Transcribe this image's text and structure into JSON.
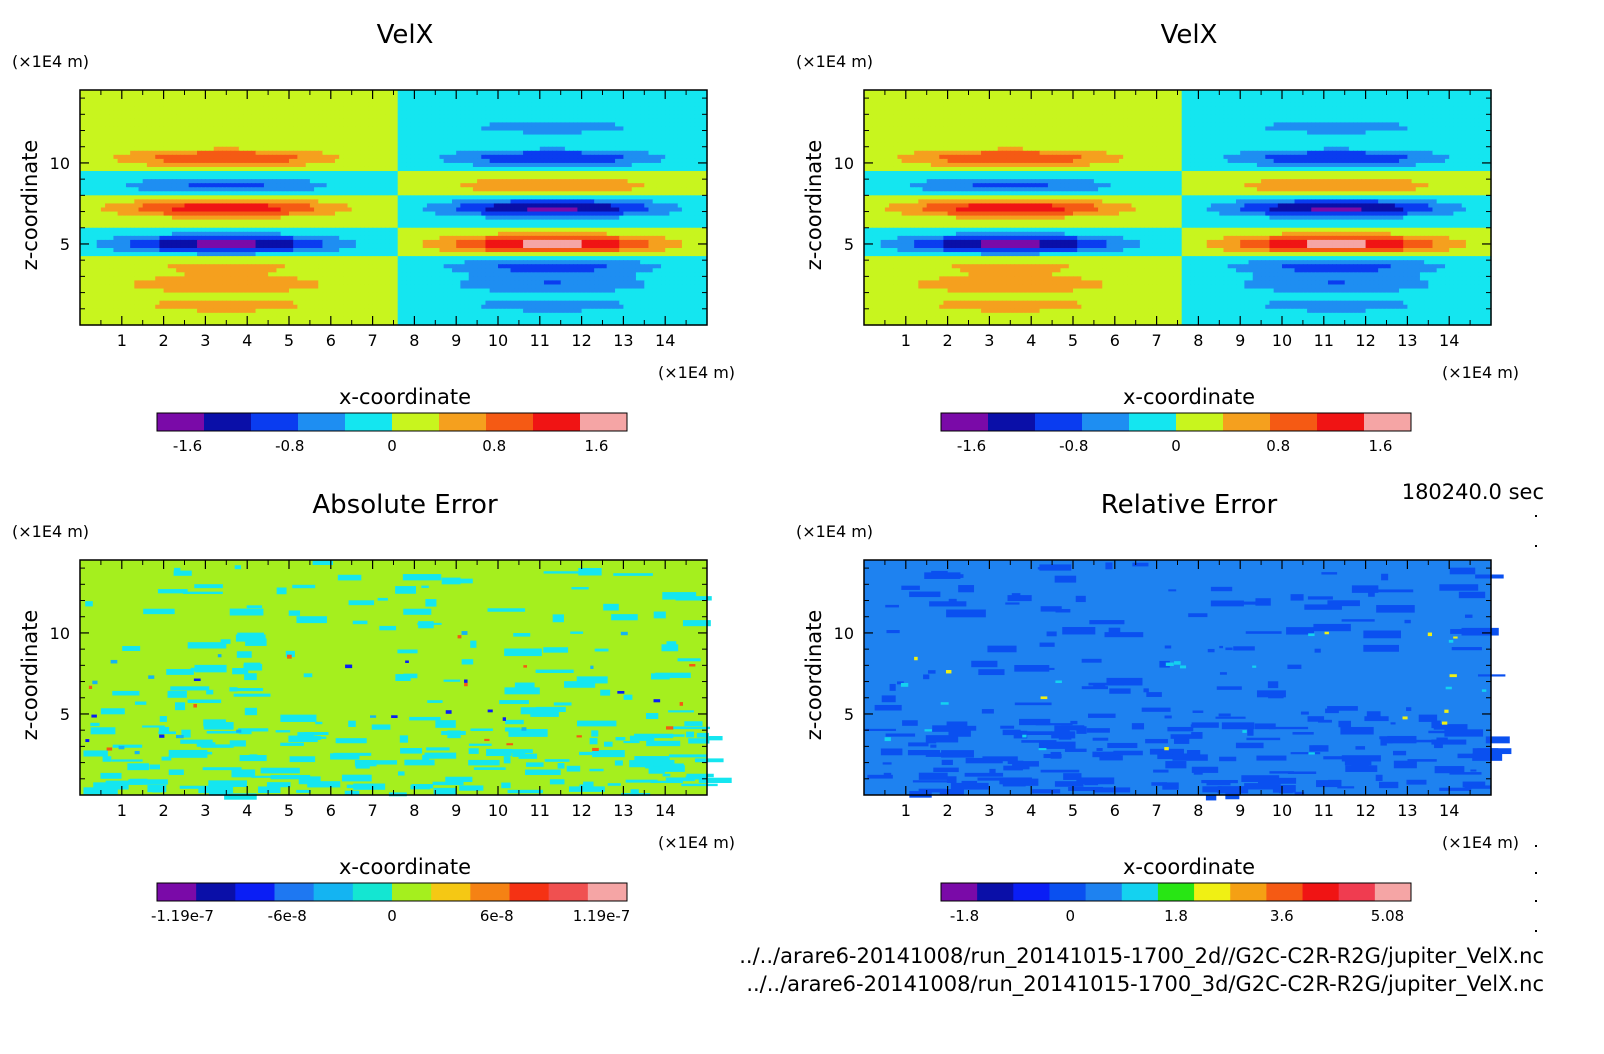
{
  "chart_data": [
    {
      "type": "heatmap",
      "title": "VelX",
      "xlabel": "x-coordinate",
      "ylabel": "z-coordinate",
      "x_unit": "(×1E4 m)",
      "y_unit": "(×1E4 m)",
      "xlim": [
        0,
        15
      ],
      "ylim": [
        0,
        14.5
      ],
      "xticks": [
        "1",
        "2",
        "3",
        "4",
        "5",
        "6",
        "7",
        "8",
        "9",
        "10",
        "11",
        "12",
        "13",
        "14"
      ],
      "yticks": [
        "5",
        "10"
      ],
      "bands": [
        {
          "z": 1.2,
          "left": 0.6,
          "right": -0.6
        },
        {
          "z": 2.5,
          "left": 0.8,
          "right": -0.8
        },
        {
          "z": 3.6,
          "left": 0.5,
          "right": -1.0
        },
        {
          "z": 5.0,
          "left": -1.8,
          "right": 1.8
        },
        {
          "z": 7.2,
          "left": 1.5,
          "right": -1.7
        },
        {
          "z": 8.6,
          "left": -0.9,
          "right": 0.8
        },
        {
          "z": 10.3,
          "left": 1.2,
          "right": -1.2
        },
        {
          "z": 12.2,
          "left": 0.4,
          "right": -0.6
        }
      ],
      "colorbar": {
        "colors": [
          "#7a0aa8",
          "#0a0fa8",
          "#0a3cf0",
          "#1e8ef2",
          "#14e6f0",
          "#c8f51e",
          "#f5a01e",
          "#f55a14",
          "#f01414",
          "#f5a5a5"
        ],
        "ticks": [
          "-1.6",
          "-0.8",
          "0",
          "0.8",
          "1.6"
        ]
      }
    },
    {
      "type": "heatmap",
      "title": "VelX",
      "xlabel": "x-coordinate",
      "ylabel": "z-coordinate",
      "x_unit": "(×1E4 m)",
      "y_unit": "(×1E4 m)",
      "xlim": [
        0,
        15
      ],
      "ylim": [
        0,
        14.5
      ],
      "xticks": [
        "1",
        "2",
        "3",
        "4",
        "5",
        "6",
        "7",
        "8",
        "9",
        "10",
        "11",
        "12",
        "13",
        "14"
      ],
      "yticks": [
        "5",
        "10"
      ],
      "bands": [
        {
          "z": 1.2,
          "left": 0.6,
          "right": -0.6
        },
        {
          "z": 2.5,
          "left": 0.8,
          "right": -0.8
        },
        {
          "z": 3.6,
          "left": 0.5,
          "right": -1.0
        },
        {
          "z": 5.0,
          "left": -1.8,
          "right": 1.8
        },
        {
          "z": 7.2,
          "left": 1.5,
          "right": -1.7
        },
        {
          "z": 8.6,
          "left": -0.9,
          "right": 0.8
        },
        {
          "z": 10.3,
          "left": 1.2,
          "right": -1.2
        },
        {
          "z": 12.2,
          "left": 0.4,
          "right": -0.6
        }
      ],
      "colorbar": {
        "colors": [
          "#7a0aa8",
          "#0a0fa8",
          "#0a3cf0",
          "#1e8ef2",
          "#14e6f0",
          "#c8f51e",
          "#f5a01e",
          "#f55a14",
          "#f01414",
          "#f5a5a5"
        ],
        "ticks": [
          "-1.6",
          "-0.8",
          "0",
          "0.8",
          "1.6"
        ]
      }
    },
    {
      "type": "heatmap",
      "title": "Absolute Error",
      "xlabel": "x-coordinate",
      "ylabel": "z-coordinate",
      "x_unit": "(×1E4 m)",
      "y_unit": "(×1E4 m)",
      "xlim": [
        0,
        15
      ],
      "ylim": [
        0,
        14.5
      ],
      "xticks": [
        "1",
        "2",
        "3",
        "4",
        "5",
        "6",
        "7",
        "8",
        "9",
        "10",
        "11",
        "12",
        "13",
        "14"
      ],
      "yticks": [
        "5",
        "10"
      ],
      "background_color": "#a5ef1e",
      "colorbar": {
        "colors": [
          "#7a0aa8",
          "#0a0fa8",
          "#0a1ef5",
          "#1e78f2",
          "#14b4f2",
          "#14e6d2",
          "#a5ef1e",
          "#f5c814",
          "#f58214",
          "#f53214",
          "#f05050",
          "#f5a5a5"
        ],
        "ticks": [
          "-1.19e-7",
          "-6e-8",
          "0",
          "6e-8",
          "1.19e-7"
        ]
      }
    },
    {
      "type": "heatmap",
      "title": "Relative Error",
      "xlabel": "x-coordinate",
      "ylabel": "z-coordinate",
      "x_unit": "(×1E4 m)",
      "y_unit": "(×1E4 m)",
      "xlim": [
        0,
        15
      ],
      "ylim": [
        0,
        14.5
      ],
      "xticks": [
        "1",
        "2",
        "3",
        "4",
        "5",
        "6",
        "7",
        "8",
        "9",
        "10",
        "11",
        "12",
        "13",
        "14"
      ],
      "yticks": [
        "5",
        "10"
      ],
      "background_color": "#1e82f0",
      "colorbar": {
        "colors": [
          "#7a0aa8",
          "#0a0fa8",
          "#0a1ef5",
          "#0a50f0",
          "#1e82f0",
          "#14d2f0",
          "#28e614",
          "#f0f014",
          "#f5a014",
          "#f55a14",
          "#f01414",
          "#f03c50",
          "#f5a5a5"
        ],
        "ticks": [
          "-1.8",
          "0",
          "1.8",
          "3.6",
          "5.08"
        ]
      }
    }
  ],
  "time_label": "180240.0 sec",
  "files": [
    "../../arare6-20141008/run_20141015-1700_2d//G2C-C2R-R2G/jupiter_VelX.nc",
    "../../arare6-20141008/run_20141015-1700_3d/G2C-C2R-R2G/jupiter_VelX.nc"
  ]
}
